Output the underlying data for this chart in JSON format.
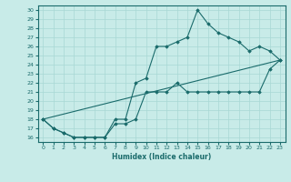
{
  "title": "",
  "xlabel": "Humidex (Indice chaleur)",
  "xlim": [
    -0.5,
    23.5
  ],
  "ylim": [
    15.5,
    30.5
  ],
  "yticks": [
    16,
    17,
    18,
    19,
    20,
    21,
    22,
    23,
    24,
    25,
    26,
    27,
    28,
    29,
    30
  ],
  "xticks": [
    0,
    1,
    2,
    3,
    4,
    5,
    6,
    7,
    8,
    9,
    10,
    11,
    12,
    13,
    14,
    15,
    16,
    17,
    18,
    19,
    20,
    21,
    22,
    23
  ],
  "background_color": "#c8ebe8",
  "line_color": "#1a6b6b",
  "grid_color": "#a8d8d4",
  "line1_x": [
    0,
    1,
    2,
    3,
    4,
    5,
    6,
    7,
    8,
    9,
    10,
    11,
    12,
    13,
    14,
    15,
    16,
    17,
    18,
    19,
    20,
    21,
    22,
    23
  ],
  "line1_y": [
    18.0,
    17.0,
    16.5,
    16.0,
    16.0,
    16.0,
    16.0,
    17.5,
    17.5,
    18.0,
    21.0,
    21.0,
    21.0,
    22.0,
    21.0,
    21.0,
    21.0,
    21.0,
    21.0,
    21.0,
    21.0,
    21.0,
    23.5,
    24.5
  ],
  "line2_x": [
    0,
    1,
    2,
    3,
    4,
    5,
    6,
    7,
    8,
    9,
    10,
    11,
    12,
    13,
    14,
    15,
    16,
    17,
    18,
    19,
    20,
    21,
    22,
    23
  ],
  "line2_y": [
    18.0,
    17.0,
    16.5,
    16.0,
    16.0,
    16.0,
    16.0,
    18.0,
    18.0,
    22.0,
    22.5,
    26.0,
    26.0,
    26.5,
    27.0,
    30.0,
    28.5,
    27.5,
    27.0,
    26.5,
    25.5,
    26.0,
    25.5,
    24.5
  ],
  "line3_x": [
    0,
    23
  ],
  "line3_y": [
    18.0,
    24.5
  ]
}
